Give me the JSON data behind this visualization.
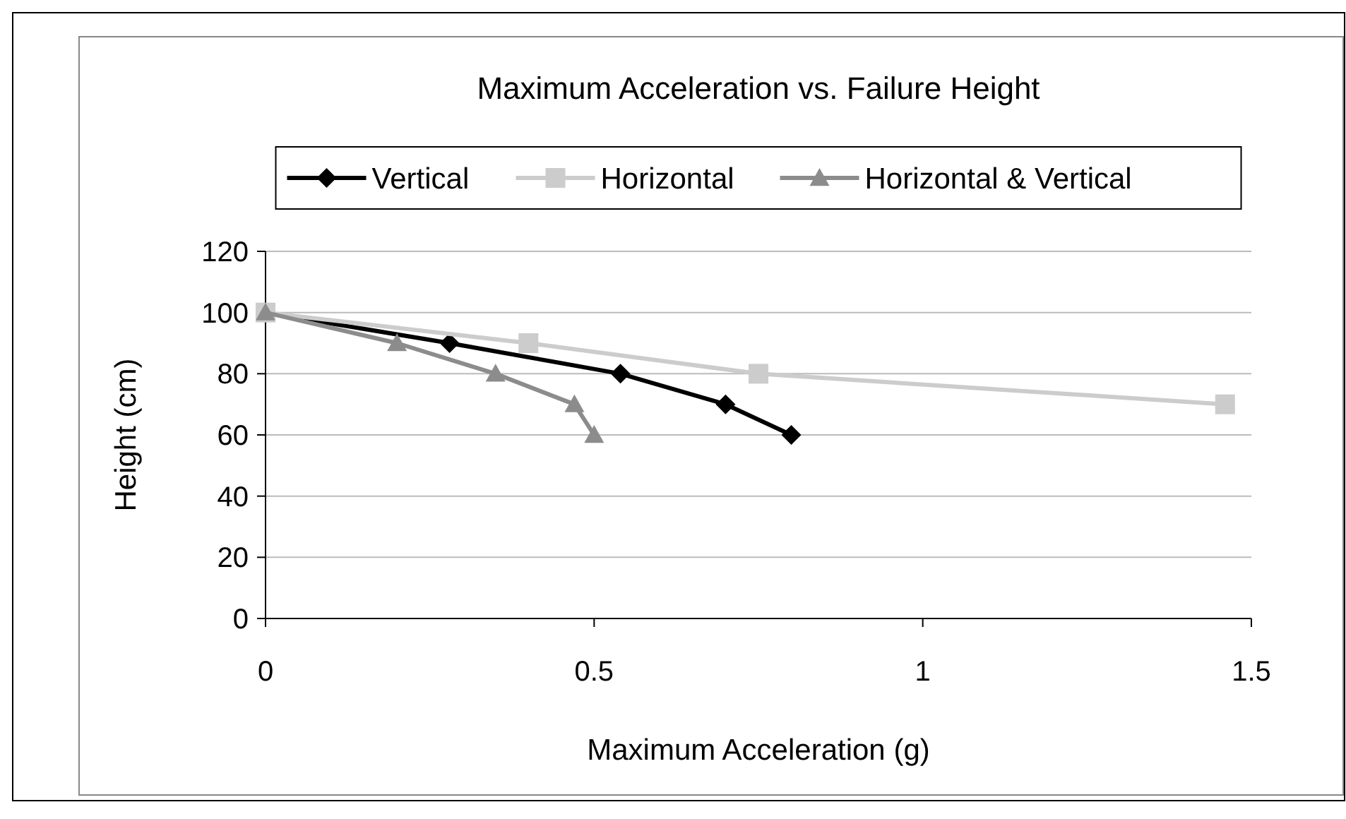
{
  "chart_data": {
    "type": "line",
    "title": "Maximum Acceleration vs. Failure Height",
    "xlabel": "Maximum Acceleration (g)",
    "ylabel": "Height (cm)",
    "xlim": [
      0,
      1.5
    ],
    "xticks": [
      0,
      0.5,
      1,
      1.5
    ],
    "ylim": [
      0,
      120
    ],
    "yticks": [
      0,
      20,
      40,
      60,
      80,
      100,
      120
    ],
    "grid": "y",
    "legend": "top",
    "series": [
      {
        "name": "Vertical",
        "color": "#000000",
        "marker": "diamond",
        "x": [
          0,
          0.28,
          0.54,
          0.7,
          0.8
        ],
        "values": [
          100,
          90,
          80,
          70,
          60
        ]
      },
      {
        "name": "Horizontal",
        "color": "#cccccc",
        "marker": "square",
        "x": [
          0,
          0.4,
          0.75,
          1.46
        ],
        "values": [
          100,
          90,
          80,
          70
        ]
      },
      {
        "name": "Horizontal & Vertical",
        "color": "#8c8c8c",
        "marker": "triangle",
        "x": [
          0,
          0.2,
          0.35,
          0.47,
          0.5
        ],
        "values": [
          100,
          90,
          80,
          70,
          60
        ]
      }
    ]
  }
}
